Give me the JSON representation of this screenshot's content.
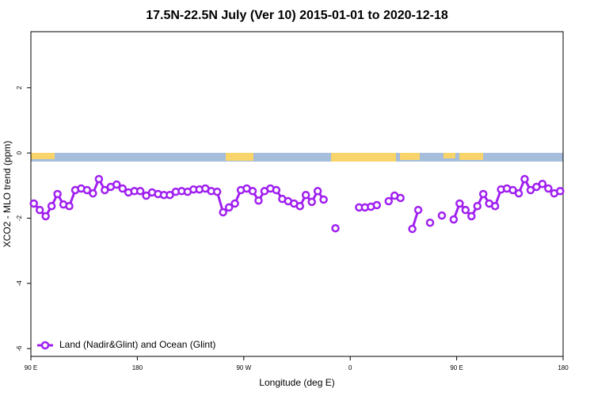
{
  "chart_data": {
    "type": "line",
    "title": "17.5N-22.5N July (Ver 10)   2015-01-01 to 2020-12-18",
    "xlabel": "Longitude (deg E)",
    "ylabel": "XCO2 - MLO trend (ppm)",
    "xlim": [
      90,
      540
    ],
    "ylim": [
      -6.24,
      3.72
    ],
    "xticks": [
      {
        "value": 90,
        "label": "90 E"
      },
      180,
      {
        "value": 270,
        "label": "90 W"
      },
      {
        "value": 360,
        "label": "0"
      },
      {
        "value": 450,
        "label": "90 E"
      },
      {
        "value": 540,
        "label": "180"
      }
    ],
    "yticks": [
      -6,
      -4,
      -2,
      0,
      2
    ],
    "legend": "bottom-left",
    "x": [
      92.5,
      97.5,
      102.5,
      107.5,
      112.5,
      117.5,
      122.5,
      127.5,
      132.5,
      137.5,
      142.5,
      147.5,
      152.5,
      157.5,
      162.5,
      167.5,
      172.5,
      177.5,
      182.5,
      187.5,
      192.5,
      197.5,
      202.5,
      207.5,
      212.5,
      217.5,
      222.5,
      227.5,
      232.5,
      237.5,
      242.5,
      247.5,
      252.5,
      257.5,
      262.5,
      267.5,
      272.5,
      277.5,
      282.5,
      287.5,
      292.5,
      297.5,
      302.5,
      307.5,
      312.5,
      317.5,
      322.5,
      327.5,
      332.5,
      337.5,
      342.5,
      347.5,
      352.5,
      357.5,
      362.5,
      367.5,
      372.5,
      377.5,
      382.5,
      387.5,
      392.5,
      397.5,
      402.5,
      407.5,
      412.5,
      417.5,
      422.5,
      427.5,
      432.5,
      437.5,
      442.5,
      447.5,
      452.5,
      457.5,
      462.5,
      467.5,
      472.5,
      477.5,
      482.5,
      487.5,
      492.5,
      497.5,
      502.5,
      507.5,
      512.5,
      517.5,
      522.5,
      527.5,
      532.5,
      537.5
    ],
    "series": [
      {
        "name": "Land (Nadir&Glint) and Ocean (Glint)",
        "color": "#a020f0",
        "values": [
          -1.55,
          -1.75,
          -1.94,
          -1.63,
          -1.26,
          -1.58,
          -1.63,
          -1.14,
          -1.09,
          -1.14,
          -1.24,
          -0.8,
          -1.14,
          -1.04,
          -0.97,
          -1.09,
          -1.21,
          -1.17,
          -1.17,
          -1.31,
          -1.21,
          -1.26,
          -1.29,
          -1.29,
          -1.19,
          -1.17,
          -1.19,
          -1.12,
          -1.12,
          -1.09,
          -1.17,
          -1.19,
          -1.82,
          -1.67,
          -1.55,
          -1.14,
          -1.09,
          -1.17,
          -1.46,
          -1.17,
          -1.09,
          -1.14,
          -1.41,
          -1.48,
          -1.55,
          -1.63,
          -1.29,
          -1.5,
          -1.17,
          -1.43,
          null,
          -2.31,
          null,
          null,
          null,
          -1.67,
          -1.67,
          -1.65,
          -1.6,
          null,
          -1.48,
          -1.31,
          -1.38,
          null,
          -2.33,
          -1.75,
          null,
          -2.14,
          null,
          -1.92,
          null,
          -2.04,
          -1.55,
          -1.75,
          -1.94,
          -1.63,
          -1.26,
          -1.55,
          -1.63,
          -1.12,
          -1.09,
          -1.14,
          -1.24,
          -0.8,
          -1.14,
          -1.04,
          -0.95,
          -1.09,
          -1.24,
          -1.17
        ]
      }
    ]
  }
}
